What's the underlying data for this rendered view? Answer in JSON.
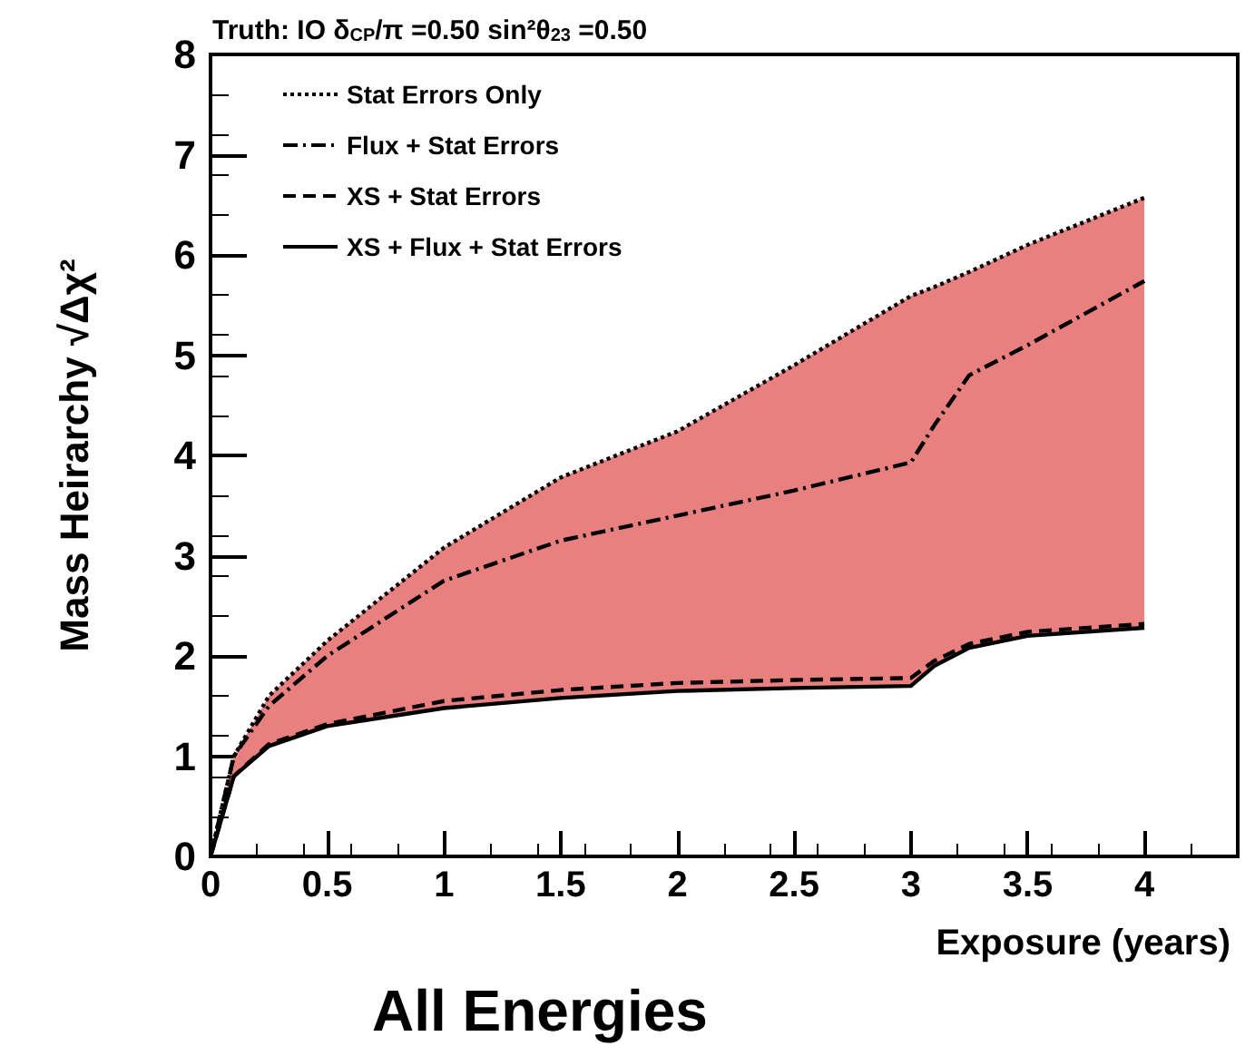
{
  "chart_data": {
    "type": "line",
    "title": "Truth: IO δ$_{CP}$/π =0.50 sin²θ$_{23}$ =0.50",
    "subtitle": "All Energies",
    "xlabel": "Exposure (years)",
    "ylabel": "Mass Heirarchy √Δχ²",
    "x": [
      0,
      0.1,
      0.25,
      0.5,
      1,
      1.5,
      2,
      2.5,
      3,
      3.1,
      3.25,
      3.5,
      4
    ],
    "series": [
      {
        "name": "Stat Errors Only",
        "color": "#000000",
        "line_style": "dotted",
        "values": [
          0,
          1.0,
          1.6,
          2.15,
          3.08,
          3.78,
          4.24,
          4.9,
          5.59,
          5.68,
          5.83,
          6.1,
          6.57
        ],
        "lower": [
          0,
          0.8,
          1.1,
          1.3,
          1.48,
          1.58,
          1.65,
          1.68,
          1.7,
          1.9,
          2.08,
          2.2,
          2.28
        ],
        "upper": [
          0,
          1.0,
          1.6,
          2.15,
          3.08,
          3.78,
          4.24,
          4.9,
          5.59,
          5.68,
          5.83,
          6.1,
          6.57
        ]
      },
      {
        "name": "Flux + Stat Errors",
        "color": "#000000",
        "line_style": "dashdot",
        "values": [
          0,
          1.0,
          1.5,
          2.0,
          2.75,
          3.15,
          3.4,
          3.65,
          3.93,
          4.3,
          4.8,
          5.1,
          5.74
        ]
      },
      {
        "name": "XS + Stat Errors",
        "color": "#000000",
        "line_style": "dashed",
        "values": [
          0,
          0.8,
          1.12,
          1.32,
          1.55,
          1.66,
          1.73,
          1.76,
          1.78,
          1.95,
          2.12,
          2.24,
          2.32
        ]
      },
      {
        "name": "XS + Flux + Stat Errors",
        "color": "#000000",
        "line_style": "solid",
        "values": [
          0,
          0.8,
          1.1,
          1.3,
          1.48,
          1.58,
          1.65,
          1.68,
          1.7,
          1.9,
          2.08,
          2.2,
          2.28
        ]
      }
    ],
    "xlim": [
      0,
      4.4
    ],
    "xticks": [
      0,
      0.5,
      1,
      1.5,
      2,
      2.5,
      3,
      3.5,
      4
    ],
    "ylim": [
      0,
      8
    ],
    "yticks": [
      0,
      1,
      2,
      3,
      4,
      5,
      6,
      7,
      8
    ],
    "grid": false,
    "legend": "top left",
    "marker": "none"
  }
}
